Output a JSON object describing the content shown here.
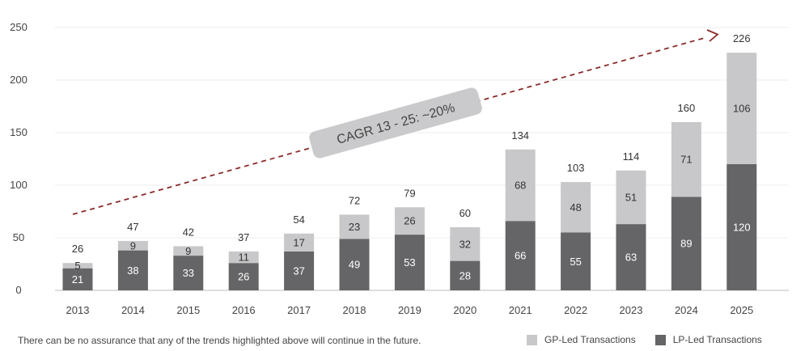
{
  "chart_data": {
    "type": "bar",
    "stacked": true,
    "categories": [
      "2013",
      "2014",
      "2015",
      "2016",
      "2017",
      "2018",
      "2019",
      "2020",
      "2021",
      "2022",
      "2023",
      "2024",
      "2025"
    ],
    "series": [
      {
        "name": "LP-Led Transactions",
        "color": "#656567",
        "values": [
          21,
          38,
          33,
          26,
          37,
          49,
          53,
          28,
          66,
          55,
          63,
          89,
          120
        ]
      },
      {
        "name": "GP-Led Transactions",
        "color": "#c8c8ca",
        "values": [
          5,
          9,
          9,
          11,
          17,
          23,
          26,
          32,
          68,
          48,
          51,
          71,
          106
        ]
      }
    ],
    "totals": [
      26,
      47,
      42,
      37,
      54,
      72,
      79,
      60,
      134,
      103,
      114,
      160,
      226
    ],
    "ylim": [
      0,
      250
    ],
    "yticks": [
      0,
      50,
      100,
      150,
      200,
      250
    ],
    "grid": true,
    "legend_position": "bottom-right",
    "annotation": {
      "text": "CAGR 13 - 25: ~20%",
      "style": "dashed trend arrow",
      "color": "#8b2b2b"
    }
  },
  "footnote": "There can be no assurance that any of the trends highlighted above will continue in the future."
}
